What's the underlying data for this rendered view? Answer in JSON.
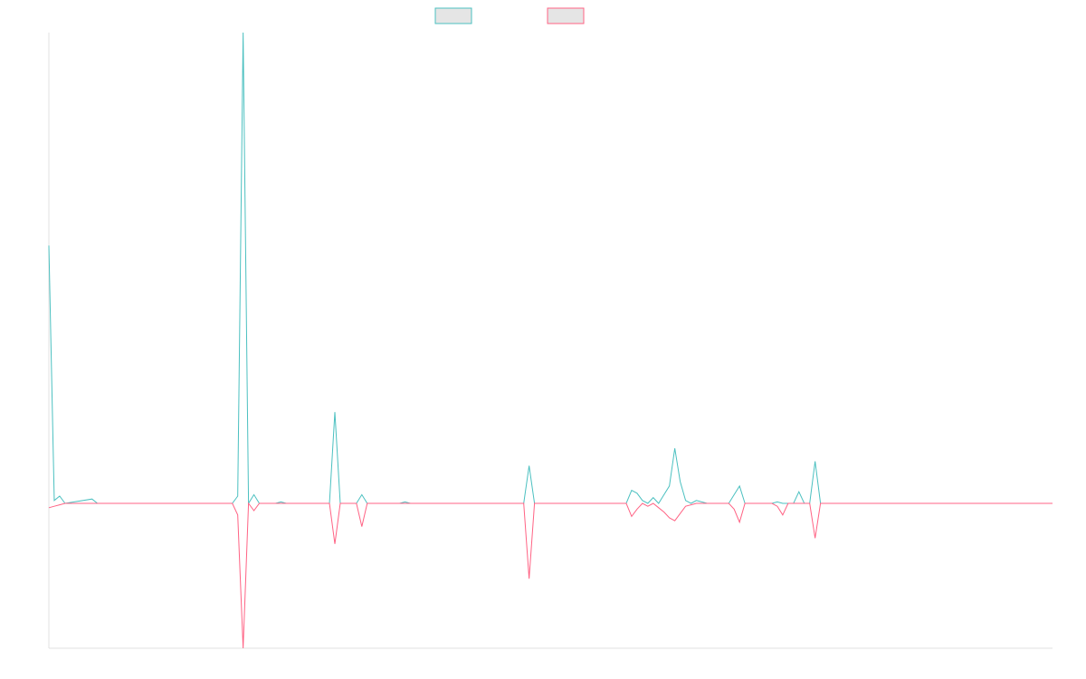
{
  "chart_data": {
    "type": "line",
    "title": "",
    "xlabel": "",
    "ylabel": "",
    "grid": false,
    "legend_position": "top-center",
    "ylim": [
      -100,
      325
    ],
    "xlim": [
      0,
      186
    ],
    "series": [
      {
        "color": "#4bc0c0",
        "points": [
          [
            0,
            178
          ],
          [
            1,
            2
          ],
          [
            2,
            5
          ],
          [
            3,
            0
          ],
          [
            8,
            3
          ],
          [
            9,
            0
          ],
          [
            34,
            0
          ],
          [
            35,
            5
          ],
          [
            36,
            325
          ],
          [
            37,
            0
          ],
          [
            38,
            6
          ],
          [
            39,
            0
          ],
          [
            42,
            0
          ],
          [
            43,
            1
          ],
          [
            44,
            0
          ],
          [
            52,
            0
          ],
          [
            53,
            63
          ],
          [
            54,
            0
          ],
          [
            57,
            0
          ],
          [
            58,
            6
          ],
          [
            59,
            0
          ],
          [
            65,
            0
          ],
          [
            66,
            1
          ],
          [
            67,
            0
          ],
          [
            88,
            0
          ],
          [
            89,
            26
          ],
          [
            90,
            0
          ],
          [
            107,
            0
          ],
          [
            108,
            9
          ],
          [
            109,
            7
          ],
          [
            110,
            2
          ],
          [
            111,
            0
          ],
          [
            112,
            4
          ],
          [
            113,
            0
          ],
          [
            114,
            6
          ],
          [
            115,
            12
          ],
          [
            116,
            38
          ],
          [
            117,
            15
          ],
          [
            118,
            2
          ],
          [
            119,
            0
          ],
          [
            120,
            2
          ],
          [
            122,
            0
          ],
          [
            123,
            0
          ],
          [
            126,
            0
          ],
          [
            127,
            6
          ],
          [
            128,
            12
          ],
          [
            129,
            0
          ],
          [
            134,
            0
          ],
          [
            135,
            1
          ],
          [
            136,
            0
          ],
          [
            138,
            0
          ],
          [
            139,
            8
          ],
          [
            140,
            0
          ],
          [
            141,
            0
          ],
          [
            142,
            29
          ],
          [
            143,
            0
          ],
          [
            186,
            0
          ]
        ]
      },
      {
        "color": "#ff6384",
        "points": [
          [
            0,
            -3
          ],
          [
            1,
            -2
          ],
          [
            2,
            -1
          ],
          [
            3,
            0
          ],
          [
            34,
            0
          ],
          [
            35,
            -8
          ],
          [
            36,
            -100
          ],
          [
            37,
            0
          ],
          [
            38,
            -5
          ],
          [
            39,
            0
          ],
          [
            52,
            0
          ],
          [
            53,
            -28
          ],
          [
            54,
            0
          ],
          [
            57,
            0
          ],
          [
            58,
            -16
          ],
          [
            59,
            0
          ],
          [
            88,
            0
          ],
          [
            89,
            -52
          ],
          [
            90,
            0
          ],
          [
            107,
            0
          ],
          [
            108,
            -9
          ],
          [
            109,
            -4
          ],
          [
            110,
            0
          ],
          [
            111,
            -2
          ],
          [
            112,
            0
          ],
          [
            113,
            -3
          ],
          [
            114,
            -6
          ],
          [
            115,
            -10
          ],
          [
            116,
            -12
          ],
          [
            117,
            -7
          ],
          [
            118,
            -2
          ],
          [
            119,
            -1
          ],
          [
            120,
            0
          ],
          [
            122,
            0
          ],
          [
            126,
            0
          ],
          [
            127,
            -4
          ],
          [
            128,
            -13
          ],
          [
            129,
            0
          ],
          [
            134,
            0
          ],
          [
            135,
            -2
          ],
          [
            136,
            -8
          ],
          [
            137,
            0
          ],
          [
            141,
            0
          ],
          [
            142,
            -24
          ],
          [
            143,
            0
          ],
          [
            186,
            0
          ]
        ]
      }
    ]
  }
}
